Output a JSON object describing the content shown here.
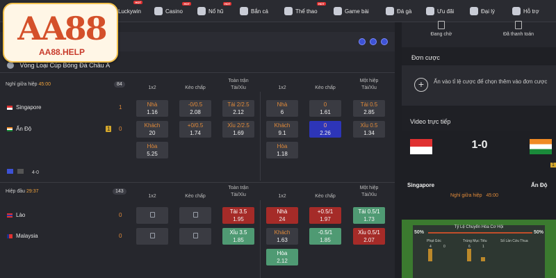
{
  "nav": {
    "items": [
      {
        "label": "Luckywin",
        "hot": "HOT"
      },
      {
        "label": "Casino",
        "hot": "HOT"
      },
      {
        "label": "Nổ hũ",
        "hot": "HOT"
      },
      {
        "label": "Bắn cá",
        "hot": ""
      },
      {
        "label": "Thể thao",
        "hot": "HOT"
      },
      {
        "label": "Game bài",
        "hot": ""
      },
      {
        "label": "Đá gà",
        "hot": ""
      },
      {
        "label": "Ưu đãi",
        "hot": ""
      },
      {
        "label": "Đại lý",
        "hot": ""
      },
      {
        "label": "Hỗ trợ",
        "hot": ""
      }
    ]
  },
  "logo": {
    "main": "AA88",
    "sub": "AA88.HELP"
  },
  "league": {
    "title": "Vòng Loại Cúp Bóng Đá Châu Á"
  },
  "headers": {
    "c1": "1x2",
    "c2": "Kèo chấp",
    "c3a": "Toàn trận",
    "c3b": "Tài/Xỉu",
    "c4": "1x2",
    "c5": "Kèo chấp",
    "c6a": "Một hiệp",
    "c6b": "Tài/Xỉu"
  },
  "match1": {
    "status": "Nghỉ giữa hiệp",
    "time": "45:00",
    "count": "84",
    "home": "Singapore",
    "away": "Ấn Độ",
    "home_score": "1",
    "away_score": "0",
    "away_card": "1",
    "bottom_score": "4-0",
    "ft_1x2": [
      {
        "t": "Nhà",
        "v": "1.16"
      },
      {
        "t": "Khách",
        "v": "20"
      },
      {
        "t": "Hòa",
        "v": "5.25"
      }
    ],
    "ft_hdp": [
      {
        "t": "-0/0.5",
        "v": "2.08"
      },
      {
        "t": "+0/0.5",
        "v": "1.74"
      }
    ],
    "ft_ou": [
      {
        "t": "Tài 2/2.5",
        "v": "2.12"
      },
      {
        "t": "Xỉu 2/2.5",
        "v": "1.69"
      }
    ],
    "h1_1x2": [
      {
        "t": "Nhà",
        "v": "6"
      },
      {
        "t": "Khách",
        "v": "9.1"
      },
      {
        "t": "Hòa",
        "v": "1.18"
      }
    ],
    "h1_hdp": [
      {
        "t": "0",
        "v": "1.61"
      },
      {
        "t": "0",
        "v": "2.26"
      }
    ],
    "h1_ou": [
      {
        "t": "Tài 0.5",
        "v": "2.85"
      },
      {
        "t": "Xỉu 0.5",
        "v": "1.34"
      }
    ]
  },
  "match2": {
    "status": "Hiệp đầu",
    "time": "29:37",
    "count": "143",
    "home": "Lào",
    "away": "Malaysia",
    "home_score": "0",
    "away_score": "0",
    "ft_ou": [
      {
        "t": "Tài 3.5",
        "v": "1.95"
      },
      {
        "t": "Xỉu 3.5",
        "v": "1.85"
      }
    ],
    "h1_1x2": [
      {
        "t": "Nhà",
        "v": "24"
      },
      {
        "t": "Khách",
        "v": "1.63"
      },
      {
        "t": "Hòa",
        "v": "2.12"
      }
    ],
    "h1_hdp": [
      {
        "t": "+0.5/1",
        "v": "1.97"
      },
      {
        "t": "-0.5/1",
        "v": "1.85"
      }
    ],
    "h1_ou": [
      {
        "t": "Tài 0.5/1",
        "v": "1.73"
      },
      {
        "t": "Xỉu 0.5/1",
        "v": "2.07"
      }
    ]
  },
  "right": {
    "tab1": "Đang chờ",
    "tab2": "Đã thanh toán",
    "bets_title": "Đơn cược",
    "bets_hint": "Ấn vào tỉ lệ cược để chọn thêm vào đơn cược",
    "video_title": "Video trực tiếp",
    "score": "1-0",
    "home": "Singapore",
    "away": "Ấn Độ",
    "status": "Nghỉ giữa hiệp",
    "time": "45:00",
    "card": "1",
    "pitch_title": "Tỷ Lệ Chuyển Hóa Cơ Hội",
    "pct_left": "50%",
    "pct_right": "50%",
    "stat1": "Phạt Góc",
    "stat2": "Trúng Mục Tiêu",
    "stat3": "Số Lần Cứu Thua",
    "stat1_a": "4",
    "stat1_b": "0",
    "stat2_a": "6",
    "stat2_b": "1"
  }
}
